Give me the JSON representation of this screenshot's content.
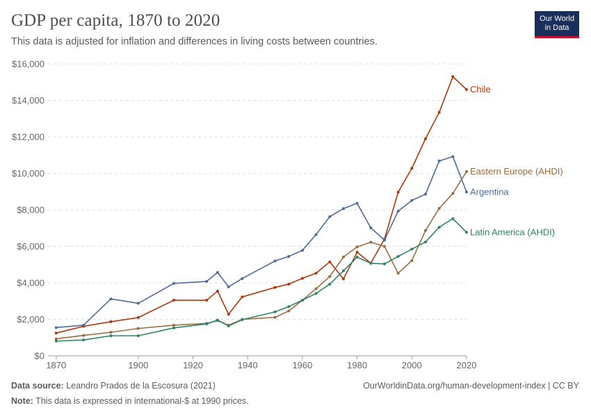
{
  "header": {
    "title": "GDP per capita, 1870 to 2020",
    "subtitle": "This data is adjusted for inflation and differences in living costs between countries."
  },
  "logo": {
    "line1": "Our World",
    "line2": "in Data",
    "bg": "#1a2f5a",
    "accent": "#c8102e"
  },
  "footer": {
    "source_label": "Data source:",
    "source_text": " Leandro Prados de la Escosura (2021)",
    "url": "OurWorldinData.org/human-development-index | CC BY",
    "note_label": "Note:",
    "note_text": " This data is expressed in international-$ at 1990 prices."
  },
  "chart_data": {
    "type": "line",
    "xlim": [
      1867,
      2020
    ],
    "ylim": [
      0,
      16000
    ],
    "yticks": [
      0,
      2000,
      4000,
      6000,
      8000,
      10000,
      12000,
      14000,
      16000
    ],
    "ytick_labels": [
      "$0",
      "$2,000",
      "$4,000",
      "$6,000",
      "$8,000",
      "$10,000",
      "$12,000",
      "$14,000",
      "$16,000"
    ],
    "xticks": [
      1870,
      1900,
      1920,
      1940,
      1960,
      1980,
      2000,
      2020
    ],
    "xtick_labels": [
      "1870",
      "1900",
      "1920",
      "1940",
      "1960",
      "1980",
      "2000",
      "2020"
    ],
    "grid": true,
    "series": [
      {
        "name": "Chile",
        "color": "#b13507",
        "points": [
          [
            1870,
            1250
          ],
          [
            1880,
            1620
          ],
          [
            1890,
            1870
          ],
          [
            1900,
            2100
          ],
          [
            1913,
            3050
          ],
          [
            1925,
            3050
          ],
          [
            1929,
            3550
          ],
          [
            1933,
            2280
          ],
          [
            1938,
            3230
          ],
          [
            1950,
            3750
          ],
          [
            1955,
            3930
          ],
          [
            1960,
            4250
          ],
          [
            1965,
            4530
          ],
          [
            1970,
            5150
          ],
          [
            1975,
            4220
          ],
          [
            1980,
            5680
          ],
          [
            1985,
            5080
          ],
          [
            1990,
            6400
          ],
          [
            1995,
            8970
          ],
          [
            2000,
            10280
          ],
          [
            2005,
            11900
          ],
          [
            2010,
            13350
          ],
          [
            2015,
            15300
          ],
          [
            2020,
            14600
          ]
        ]
      },
      {
        "name": "Argentina",
        "color": "#4c6a9c",
        "points": [
          [
            1870,
            1550
          ],
          [
            1880,
            1680
          ],
          [
            1890,
            3120
          ],
          [
            1900,
            2880
          ],
          [
            1913,
            3970
          ],
          [
            1925,
            4080
          ],
          [
            1929,
            4570
          ],
          [
            1933,
            3780
          ],
          [
            1938,
            4240
          ],
          [
            1950,
            5200
          ],
          [
            1955,
            5450
          ],
          [
            1960,
            5780
          ],
          [
            1965,
            6650
          ],
          [
            1970,
            7630
          ],
          [
            1975,
            8070
          ],
          [
            1980,
            8360
          ],
          [
            1985,
            7020
          ],
          [
            1990,
            6340
          ],
          [
            1995,
            7930
          ],
          [
            2000,
            8520
          ],
          [
            2005,
            8860
          ],
          [
            2010,
            10680
          ],
          [
            2015,
            10920
          ],
          [
            2020,
            8980
          ]
        ]
      },
      {
        "name": "Eastern Europe (AHDI)",
        "color": "#9a6d3e",
        "points": [
          [
            1870,
            930
          ],
          [
            1880,
            1120
          ],
          [
            1890,
            1290
          ],
          [
            1900,
            1500
          ],
          [
            1913,
            1680
          ],
          [
            1925,
            1780
          ],
          [
            1929,
            1930
          ],
          [
            1933,
            1680
          ],
          [
            1938,
            2000
          ],
          [
            1950,
            2110
          ],
          [
            1955,
            2460
          ],
          [
            1960,
            3050
          ],
          [
            1965,
            3680
          ],
          [
            1970,
            4350
          ],
          [
            1975,
            5420
          ],
          [
            1980,
            5970
          ],
          [
            1985,
            6230
          ],
          [
            1990,
            6000
          ],
          [
            1995,
            4530
          ],
          [
            2000,
            5220
          ],
          [
            2005,
            6870
          ],
          [
            2010,
            8080
          ],
          [
            2015,
            8900
          ],
          [
            2020,
            10100
          ]
        ]
      },
      {
        "name": "Latin America (AHDI)",
        "color": "#2c8465",
        "points": [
          [
            1870,
            810
          ],
          [
            1880,
            870
          ],
          [
            1890,
            1100
          ],
          [
            1900,
            1100
          ],
          [
            1913,
            1530
          ],
          [
            1925,
            1750
          ],
          [
            1929,
            1960
          ],
          [
            1933,
            1640
          ],
          [
            1938,
            1980
          ],
          [
            1950,
            2410
          ],
          [
            1955,
            2700
          ],
          [
            1960,
            3050
          ],
          [
            1965,
            3420
          ],
          [
            1970,
            3930
          ],
          [
            1975,
            4660
          ],
          [
            1980,
            5410
          ],
          [
            1985,
            5070
          ],
          [
            1990,
            5040
          ],
          [
            1995,
            5450
          ],
          [
            2000,
            5850
          ],
          [
            2005,
            6240
          ],
          [
            2010,
            7050
          ],
          [
            2015,
            7520
          ],
          [
            2020,
            6770
          ]
        ]
      }
    ]
  }
}
